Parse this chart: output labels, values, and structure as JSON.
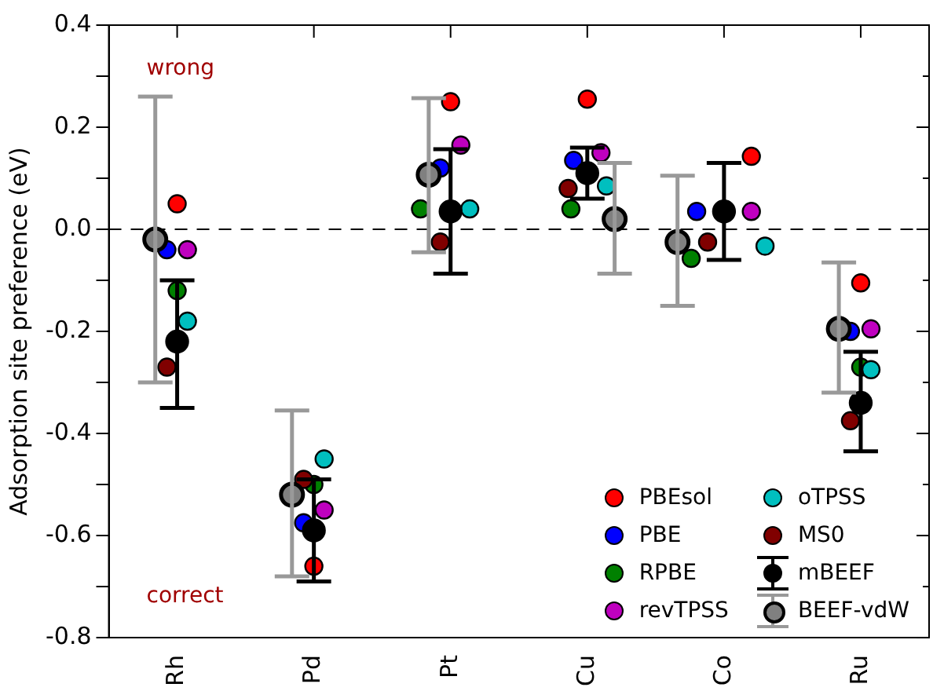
{
  "chart_data": {
    "type": "scatter",
    "ylabel": "Adsorption site preference (eV)",
    "categories": [
      "Rh",
      "Pd",
      "Pt",
      "Cu",
      "Co",
      "Ru"
    ],
    "ylim": [
      -0.8,
      0.4
    ],
    "yticks": [
      -0.8,
      {
        "value": -0.7,
        "label": null
      },
      -0.6,
      {
        "value": -0.5,
        "label": null
      },
      -0.4,
      {
        "value": -0.3,
        "label": null
      },
      -0.2,
      {
        "value": -0.1,
        "label": null
      },
      {
        "value": 0,
        "label": "0.0"
      },
      {
        "value": 0.1,
        "label": null
      },
      0.2,
      {
        "value": 0.3,
        "label": null
      },
      0.4
    ],
    "marker": "circle",
    "grid": false,
    "legend": "bottom right",
    "ref_lines": [
      {
        "axis": "y",
        "value": 0,
        "color": "#000000",
        "line_style": "dashed"
      }
    ],
    "annotations": [
      "wrong",
      "correct"
    ],
    "series": [
      {
        "name": "PBEsol",
        "color": "#ff0000",
        "values": [
          0.05,
          -0.66,
          0.25,
          0.255,
          0.143,
          -0.105
        ]
      },
      {
        "name": "PBE",
        "color": "#0000ff",
        "values": [
          -0.04,
          -0.575,
          0.12,
          0.135,
          0.035,
          -0.2
        ]
      },
      {
        "name": "RPBE",
        "color": "#008000",
        "values": [
          -0.12,
          -0.5,
          0.04,
          0.04,
          -0.057,
          -0.27
        ]
      },
      {
        "name": "revTPSS",
        "color": "#bf00bf",
        "values": [
          -0.04,
          -0.55,
          0.165,
          0.15,
          0.035,
          -0.195
        ]
      },
      {
        "name": "oTPSS",
        "color": "#00bfbf",
        "values": [
          -0.18,
          -0.45,
          0.04,
          0.085,
          -0.033,
          -0.275
        ]
      },
      {
        "name": "MS0",
        "color": "#800000",
        "values": [
          -0.27,
          -0.49,
          -0.025,
          0.08,
          -0.025,
          -0.375
        ]
      },
      {
        "name": "mBEEF",
        "color": "#000000",
        "values": [
          -0.22,
          -0.59,
          0.035,
          0.11,
          0.035,
          -0.34
        ],
        "errors": [
          [
            -0.35,
            -0.1
          ],
          [
            -0.69,
            -0.49
          ],
          [
            -0.087,
            0.157
          ],
          [
            0.06,
            0.16
          ],
          [
            -0.06,
            0.13
          ],
          [
            -0.435,
            -0.24
          ]
        ]
      },
      {
        "name": "BEEF-vdW",
        "color": "#808080",
        "values": [
          -0.02,
          -0.52,
          0.107,
          0.02,
          -0.025,
          -0.195
        ],
        "errors": [
          [
            -0.3,
            0.26
          ],
          [
            -0.68,
            -0.355
          ],
          [
            -0.045,
            0.257
          ],
          [
            -0.087,
            0.13
          ],
          [
            -0.15,
            0.105
          ],
          [
            -0.32,
            -0.065
          ]
        ]
      }
    ]
  }
}
